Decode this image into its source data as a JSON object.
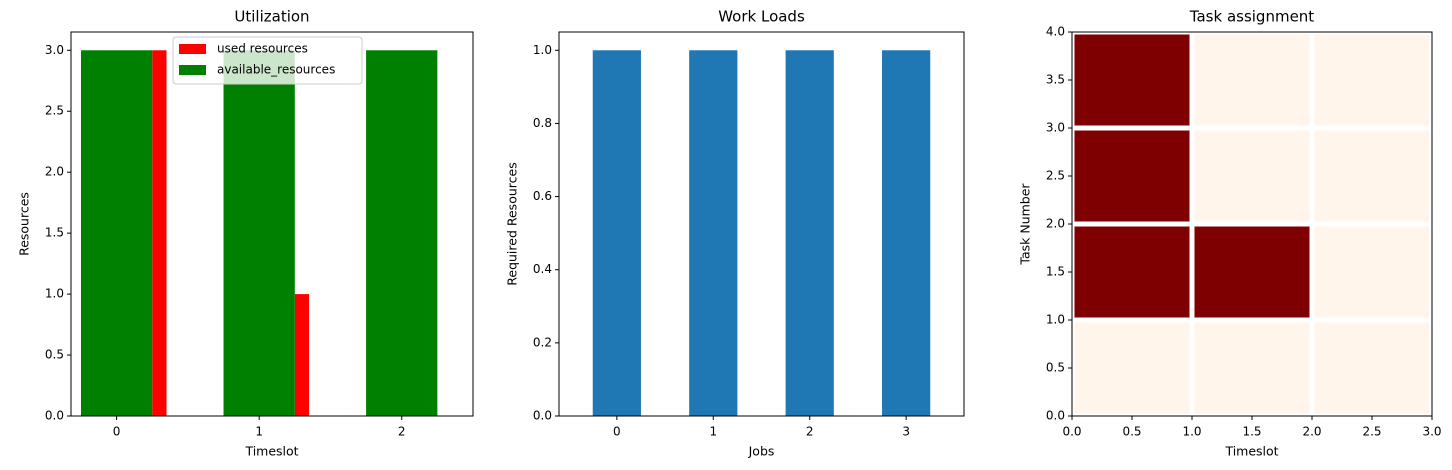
{
  "chart_data": [
    {
      "type": "grouped_bar",
      "title": "Utilization",
      "xlabel": "Timeslot",
      "ylabel": "Resources",
      "x": [
        0,
        1,
        2
      ],
      "series": [
        {
          "name": "used resources",
          "color": "#ff0000",
          "values": [
            3,
            1,
            0
          ]
        },
        {
          "name": "available_resources",
          "color": "#008000",
          "values": [
            3,
            3,
            3
          ]
        }
      ],
      "xlim": [
        -0.32,
        2.5
      ],
      "xticks": [
        0,
        1,
        2
      ],
      "ylim": [
        0,
        3.15
      ],
      "yticks": [
        {
          "value": 0,
          "label": "0.0"
        },
        {
          "value": 0.5,
          "label": "0.5"
        },
        {
          "value": 1,
          "label": "1.0"
        },
        {
          "value": 1.5,
          "label": "1.5"
        },
        {
          "value": 2,
          "label": "2.0"
        },
        {
          "value": 2.5,
          "label": "2.5"
        },
        {
          "value": 3,
          "label": "3.0"
        }
      ],
      "legend": "upper center"
    },
    {
      "type": "bar",
      "title": "Work Loads",
      "xlabel": "Jobs",
      "ylabel": "Required Resources",
      "categories": [
        "0",
        "1",
        "2",
        "3"
      ],
      "values": [
        1,
        1,
        1,
        1
      ],
      "color": "#1f77b4",
      "ylim": [
        0,
        1.05
      ],
      "yticks": [
        {
          "value": 0,
          "label": "0.0"
        },
        {
          "value": 0.2,
          "label": "0.2"
        },
        {
          "value": 0.4,
          "label": "0.4"
        },
        {
          "value": 0.6,
          "label": "0.6"
        },
        {
          "value": 0.8,
          "label": "0.8"
        },
        {
          "value": 1,
          "label": "1.0"
        }
      ]
    },
    {
      "type": "heatmap",
      "title": "Task assignment",
      "xlabel": "Timeslot",
      "ylabel": "Task Number",
      "values": [
        [
          0,
          0,
          0
        ],
        [
          1,
          1,
          0
        ],
        [
          1,
          0,
          0
        ],
        [
          1,
          0,
          0
        ]
      ],
      "colormap": [
        "#fff5eb",
        "#7f0000"
      ],
      "xlim": [
        0,
        3
      ],
      "xticks": [
        {
          "value": 0,
          "label": "0.0"
        },
        {
          "value": 0.5,
          "label": "0.5"
        },
        {
          "value": 1,
          "label": "1.0"
        },
        {
          "value": 1.5,
          "label": "1.5"
        },
        {
          "value": 2,
          "label": "2.0"
        },
        {
          "value": 2.5,
          "label": "2.5"
        },
        {
          "value": 3,
          "label": "3.0"
        }
      ],
      "ylim": [
        0,
        4
      ],
      "yticks": [
        {
          "value": 0,
          "label": "0.0"
        },
        {
          "value": 0.5,
          "label": "0.5"
        },
        {
          "value": 1,
          "label": "1.0"
        },
        {
          "value": 1.5,
          "label": "1.5"
        },
        {
          "value": 2,
          "label": "2.0"
        },
        {
          "value": 2.5,
          "label": "2.5"
        },
        {
          "value": 3,
          "label": "3.0"
        },
        {
          "value": 3.5,
          "label": "3.5"
        },
        {
          "value": 4,
          "label": "4.0"
        }
      ]
    }
  ]
}
